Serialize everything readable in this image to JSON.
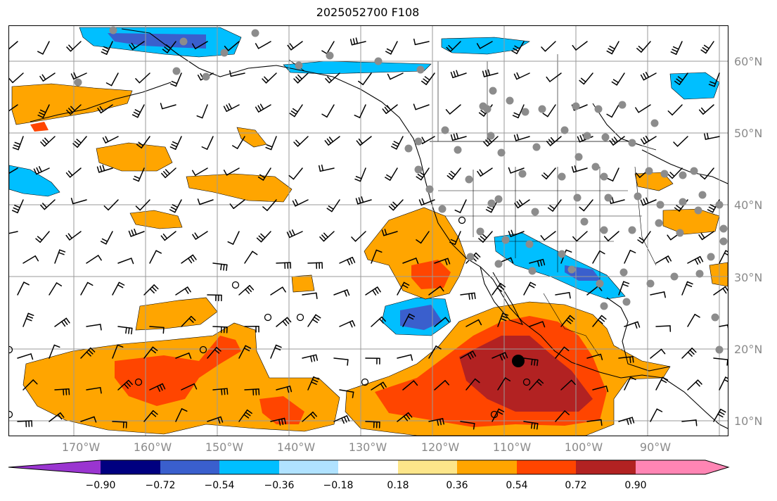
{
  "title": "2025052700 F108",
  "latitude_labels": [
    "60°N",
    "50°N",
    "40°N",
    "30°N",
    "20°N",
    "10°N"
  ],
  "longitude_labels": [
    "170°W",
    "160°W",
    "150°W",
    "140°W",
    "130°W",
    "120°W",
    "110°W",
    "100°W",
    "90°W"
  ],
  "colorbar": {
    "labels": [
      "−0.90",
      "−0.72",
      "−0.54",
      "−0.36",
      "−0.18",
      "0.18",
      "0.36",
      "0.54",
      "0.72",
      "0.90"
    ],
    "colors": [
      "#9a35d0",
      "#000080",
      "#3a5fcd",
      "#00bfff",
      "#b0e2ff",
      "#ffffff",
      "#fde68a",
      "#ffa500",
      "#ff4500",
      "#b22222",
      "#ff85b4"
    ]
  },
  "palette": {
    "orange": "#ffa500",
    "red_orange": "#ff4500",
    "dark_red": "#b22222",
    "light_blue": "#b0e2ff",
    "sky_blue": "#00bfff",
    "royal_blue": "#3a5fcd",
    "grid": "#9a9a9a",
    "marker_gray": "#8c8c8c"
  }
}
